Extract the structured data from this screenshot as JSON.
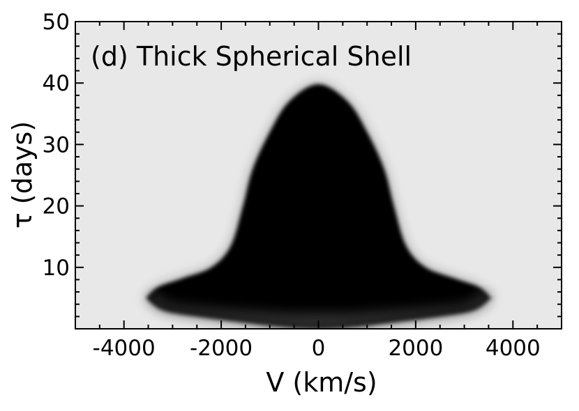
{
  "chart_data": {
    "type": "heatmap",
    "title": "(d) Thick Spherical Shell",
    "xlabel": "V (km/s)",
    "ylabel": "τ (days)",
    "xlim": [
      -5000,
      5000
    ],
    "ylim": [
      0,
      50
    ],
    "x_ticks": [
      -4000,
      -2000,
      0,
      2000,
      4000
    ],
    "x_tick_labels": [
      "-4000",
      "-2000",
      "0",
      "2000",
      "4000"
    ],
    "y_ticks": [
      10,
      20,
      30,
      40,
      50
    ],
    "y_tick_labels": [
      "10",
      "20",
      "30",
      "40",
      "50"
    ],
    "background_color": "#e8e8e8",
    "density_color": "#000000",
    "envelope": {
      "description": "bell-shaped region of high density",
      "upper_boundary": [
        {
          "v": -3550,
          "tau": 5.0
        },
        {
          "v": -3300,
          "tau": 6.8
        },
        {
          "v": -2800,
          "tau": 8.2
        },
        {
          "v": -2200,
          "tau": 10.0
        },
        {
          "v": -1800,
          "tau": 13.5
        },
        {
          "v": -1550,
          "tau": 20.0
        },
        {
          "v": -1350,
          "tau": 26.0
        },
        {
          "v": -1000,
          "tau": 32.0
        },
        {
          "v": -600,
          "tau": 37.0
        },
        {
          "v": 0,
          "tau": 39.8
        },
        {
          "v": 600,
          "tau": 37.0
        },
        {
          "v": 1000,
          "tau": 32.0
        },
        {
          "v": 1350,
          "tau": 26.0
        },
        {
          "v": 1550,
          "tau": 20.0
        },
        {
          "v": 1800,
          "tau": 13.5
        },
        {
          "v": 2200,
          "tau": 10.0
        },
        {
          "v": 2800,
          "tau": 8.2
        },
        {
          "v": 3300,
          "tau": 6.8
        },
        {
          "v": 3550,
          "tau": 5.0
        }
      ],
      "lower_boundary": [
        {
          "v": -3550,
          "tau": 5.0
        },
        {
          "v": -3200,
          "tau": 3.0
        },
        {
          "v": -2500,
          "tau": 2.0
        },
        {
          "v": -1500,
          "tau": 1.0
        },
        {
          "v": -700,
          "tau": 0.3
        },
        {
          "v": 0,
          "tau": 0.0
        },
        {
          "v": 700,
          "tau": 0.3
        },
        {
          "v": 1500,
          "tau": 1.0
        },
        {
          "v": 2500,
          "tau": 2.0
        },
        {
          "v": 3200,
          "tau": 3.0
        },
        {
          "v": 3550,
          "tau": 5.0
        }
      ]
    }
  }
}
